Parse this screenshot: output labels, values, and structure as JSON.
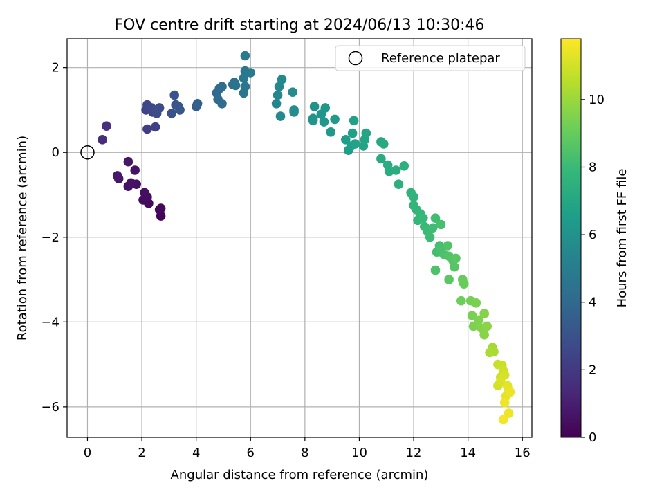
{
  "chart_data": {
    "type": "scatter",
    "title": "FOV centre drift starting at 2024/06/13 10:30:46",
    "xlabel": "Angular distance from reference (arcmin)",
    "ylabel": "Rotation from reference (arcmin)",
    "xlim": [
      -0.75,
      16.35
    ],
    "ylim": [
      -6.72,
      2.68
    ],
    "xticks": [
      0,
      2,
      4,
      6,
      8,
      10,
      12,
      14,
      16
    ],
    "xtick_labels": [
      "0",
      "2",
      "4",
      "6",
      "8",
      "10",
      "12",
      "14",
      "16"
    ],
    "yticks": [
      -6,
      -4,
      -2,
      0,
      2
    ],
    "ytick_labels": [
      "−6",
      "−4",
      "−2",
      "0",
      "2"
    ],
    "grid": true,
    "legend": {
      "location": "upper right",
      "entries": [
        "Reference platepar"
      ]
    },
    "reference_point": {
      "x": 0,
      "y": 0,
      "label": "Reference platepar"
    },
    "colorbar": {
      "label": "Hours from first FF file",
      "colormap": "viridis",
      "range": [
        0,
        11.8
      ],
      "ticks": [
        0,
        2,
        4,
        6,
        8,
        10
      ],
      "tick_labels": [
        "0",
        "2",
        "4",
        "6",
        "8",
        "10"
      ]
    },
    "colormap_stops": [
      "#440154",
      "#482878",
      "#3e4989",
      "#31688e",
      "#26828e",
      "#1f9e89",
      "#35b779",
      "#6ece58",
      "#b5de2b",
      "#fde725"
    ],
    "points": [
      [
        2.7,
        -1.5,
        0.15
      ],
      [
        2.65,
        -1.35,
        0.2
      ],
      [
        2.7,
        -1.32,
        0.25
      ],
      [
        2.25,
        -1.2,
        0.3
      ],
      [
        2.05,
        -1.12,
        0.35
      ],
      [
        2.2,
        -1.05,
        0.4
      ],
      [
        2.1,
        -0.95,
        0.45
      ],
      [
        1.8,
        -0.75,
        0.5
      ],
      [
        1.5,
        -0.8,
        0.55
      ],
      [
        1.6,
        -0.72,
        0.6
      ],
      [
        1.75,
        -0.42,
        0.65
      ],
      [
        1.5,
        -0.22,
        0.7
      ],
      [
        1.15,
        -0.62,
        0.75
      ],
      [
        1.1,
        -0.55,
        0.8
      ],
      [
        0.55,
        0.3,
        1.5
      ],
      [
        0.7,
        0.62,
        1.6
      ],
      [
        2.2,
        0.55,
        2.2
      ],
      [
        2.5,
        0.6,
        2.3
      ],
      [
        2.15,
        1.0,
        2.4
      ],
      [
        2.2,
        1.12,
        2.5
      ],
      [
        2.4,
        0.95,
        2.55
      ],
      [
        2.35,
        1.05,
        2.6
      ],
      [
        2.55,
        0.92,
        2.7
      ],
      [
        2.65,
        1.05,
        2.75
      ],
      [
        2.5,
        1.0,
        2.8
      ],
      [
        3.1,
        0.92,
        3.0
      ],
      [
        3.2,
        1.35,
        3.05
      ],
      [
        3.25,
        1.12,
        3.1
      ],
      [
        3.4,
        1.0,
        3.15
      ],
      [
        3.35,
        1.08,
        3.2
      ],
      [
        4.0,
        1.08,
        3.5
      ],
      [
        4.05,
        1.15,
        3.55
      ],
      [
        4.75,
        1.4,
        4.0
      ],
      [
        4.8,
        1.25,
        4.05
      ],
      [
        4.85,
        1.5,
        4.1
      ],
      [
        4.95,
        1.55,
        4.15
      ],
      [
        4.95,
        1.15,
        4.2
      ],
      [
        5.35,
        1.6,
        4.4
      ],
      [
        5.4,
        1.65,
        4.45
      ],
      [
        5.45,
        1.58,
        4.5
      ],
      [
        5.75,
        1.4,
        4.6
      ],
      [
        5.8,
        1.55,
        4.65
      ],
      [
        5.75,
        1.75,
        4.7
      ],
      [
        5.8,
        1.92,
        4.75
      ],
      [
        6.0,
        1.88,
        4.8
      ],
      [
        5.8,
        2.28,
        4.85
      ],
      [
        6.95,
        1.15,
        5.4
      ],
      [
        7.0,
        1.35,
        5.45
      ],
      [
        7.05,
        1.55,
        5.5
      ],
      [
        7.15,
        1.72,
        5.55
      ],
      [
        7.1,
        0.85,
        5.6
      ],
      [
        7.55,
        1.42,
        5.7
      ],
      [
        7.6,
        1.0,
        5.75
      ],
      [
        7.6,
        0.95,
        5.8
      ],
      [
        8.3,
        0.8,
        6.0
      ],
      [
        8.35,
        1.08,
        6.05
      ],
      [
        8.3,
        0.75,
        6.1
      ],
      [
        8.6,
        0.9,
        6.15
      ],
      [
        8.7,
        0.72,
        6.2
      ],
      [
        8.75,
        1.05,
        6.25
      ],
      [
        8.95,
        0.48,
        6.3
      ],
      [
        9.1,
        0.78,
        6.35
      ],
      [
        9.5,
        0.3,
        6.5
      ],
      [
        9.6,
        0.05,
        6.55
      ],
      [
        9.7,
        0.15,
        6.6
      ],
      [
        9.75,
        0.45,
        6.65
      ],
      [
        9.8,
        0.75,
        6.7
      ],
      [
        9.85,
        0.2,
        6.75
      ],
      [
        10.15,
        0.15,
        6.8
      ],
      [
        10.2,
        0.3,
        6.85
      ],
      [
        10.25,
        0.45,
        6.9
      ],
      [
        10.8,
        0.25,
        7.1
      ],
      [
        10.9,
        0.2,
        7.15
      ],
      [
        10.8,
        -0.15,
        7.2
      ],
      [
        11.05,
        -0.3,
        7.25
      ],
      [
        11.1,
        -0.45,
        7.3
      ],
      [
        11.35,
        -0.42,
        7.35
      ],
      [
        11.45,
        -0.75,
        7.4
      ],
      [
        11.65,
        -0.32,
        7.45
      ],
      [
        11.9,
        -0.95,
        7.6
      ],
      [
        12.0,
        -1.05,
        7.65
      ],
      [
        12.0,
        -1.25,
        7.7
      ],
      [
        12.1,
        -1.35,
        7.75
      ],
      [
        12.15,
        -1.6,
        7.8
      ],
      [
        12.25,
        -1.45,
        7.85
      ],
      [
        12.35,
        -1.55,
        7.9
      ],
      [
        12.4,
        -1.75,
        7.95
      ],
      [
        12.5,
        -1.85,
        8.0
      ],
      [
        12.6,
        -2.0,
        8.05
      ],
      [
        12.7,
        -1.78,
        8.1
      ],
      [
        12.8,
        -1.55,
        8.15
      ],
      [
        12.85,
        -2.35,
        8.2
      ],
      [
        12.95,
        -2.2,
        8.25
      ],
      [
        13.0,
        -1.7,
        8.3
      ],
      [
        13.0,
        -2.3,
        8.35
      ],
      [
        13.1,
        -2.4,
        8.4
      ],
      [
        12.8,
        -2.78,
        8.45
      ],
      [
        13.25,
        -2.2,
        8.5
      ],
      [
        13.3,
        -2.45,
        8.55
      ],
      [
        13.45,
        -2.55,
        8.6
      ],
      [
        13.5,
        -2.7,
        8.65
      ],
      [
        13.55,
        -2.5,
        8.7
      ],
      [
        13.3,
        -3.0,
        8.75
      ],
      [
        13.8,
        -3.0,
        9.0
      ],
      [
        13.85,
        -3.1,
        9.05
      ],
      [
        13.75,
        -3.5,
        9.1
      ],
      [
        14.1,
        -3.5,
        9.3
      ],
      [
        14.15,
        -3.85,
        9.35
      ],
      [
        14.3,
        -3.55,
        9.4
      ],
      [
        14.2,
        -4.1,
        9.45
      ],
      [
        14.4,
        -3.95,
        9.5
      ],
      [
        14.5,
        -4.15,
        9.55
      ],
      [
        14.6,
        -3.8,
        9.6
      ],
      [
        14.6,
        -4.3,
        9.65
      ],
      [
        14.7,
        -4.1,
        9.7
      ],
      [
        14.9,
        -4.6,
        10.2
      ],
      [
        14.95,
        -4.7,
        10.25
      ],
      [
        14.8,
        -4.72,
        10.3
      ],
      [
        15.1,
        -5.0,
        10.8
      ],
      [
        15.25,
        -5.02,
        10.85
      ],
      [
        15.2,
        -5.3,
        10.9
      ],
      [
        15.3,
        -5.15,
        10.95
      ],
      [
        15.1,
        -5.5,
        11.0
      ],
      [
        15.35,
        -5.25,
        11.05
      ],
      [
        15.2,
        -5.4,
        11.1
      ],
      [
        15.45,
        -5.5,
        11.3
      ],
      [
        15.4,
        -5.75,
        11.35
      ],
      [
        15.5,
        -5.6,
        11.4
      ],
      [
        15.55,
        -5.65,
        11.45
      ],
      [
        15.35,
        -5.9,
        11.5
      ],
      [
        15.5,
        -6.15,
        11.55
      ],
      [
        15.3,
        -6.3,
        11.6
      ]
    ]
  }
}
